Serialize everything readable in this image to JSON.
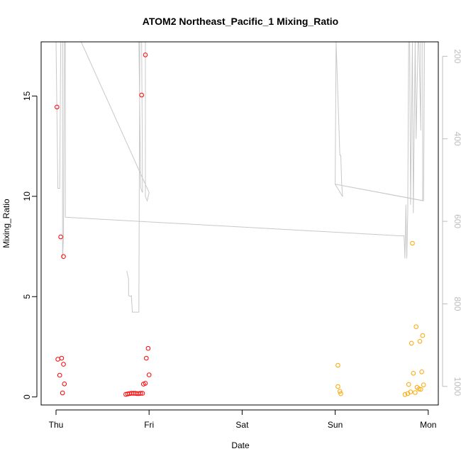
{
  "chart_data": {
    "type": "scatter",
    "title": "ATOM2 Northeast_Pacific_1 Mixing_Ratio",
    "xlabel": "Date",
    "ylabel": "Mixing_Ratio",
    "xlim": [
      0,
      4.1
    ],
    "ylim": [
      -0.4,
      17.7
    ],
    "x_tick_positions": [
      0,
      1,
      2,
      3,
      4
    ],
    "x_tick_labels": [
      "Thu",
      "Fri",
      "Sat",
      "Sun",
      "Mon"
    ],
    "y_ticks": [
      0,
      5,
      10,
      15
    ],
    "right_axis": {
      "ticks": [
        200,
        400,
        600,
        800,
        1000
      ],
      "lim": [
        1045,
        165
      ],
      "color": "#bdbdbd"
    },
    "series": [
      {
        "color": "#ff0000",
        "points": [
          [
            0.01,
            14.45
          ],
          [
            0.05,
            7.98
          ],
          [
            0.08,
            7.0
          ],
          [
            0.02,
            1.88
          ],
          [
            0.06,
            1.93
          ],
          [
            0.08,
            1.63
          ],
          [
            0.04,
            1.08
          ],
          [
            0.09,
            0.65
          ],
          [
            0.07,
            0.2
          ],
          [
            0.75,
            0.13
          ],
          [
            0.77,
            0.15
          ],
          [
            0.79,
            0.17
          ],
          [
            0.81,
            0.18
          ],
          [
            0.83,
            0.18
          ],
          [
            0.85,
            0.18
          ],
          [
            0.87,
            0.17
          ],
          [
            0.89,
            0.17
          ],
          [
            0.91,
            0.18
          ],
          [
            0.93,
            0.18
          ],
          [
            0.94,
            0.64
          ],
          [
            0.96,
            0.68
          ],
          [
            0.97,
            1.93
          ],
          [
            0.99,
            2.42
          ],
          [
            1.0,
            1.1
          ],
          [
            0.92,
            15.05
          ],
          [
            0.96,
            17.05
          ]
        ]
      },
      {
        "color": "#ffa500",
        "points": [
          [
            3.03,
            1.58
          ],
          [
            3.03,
            0.52
          ],
          [
            3.05,
            0.28
          ],
          [
            3.06,
            0.16
          ],
          [
            3.75,
            0.12
          ],
          [
            3.78,
            0.17
          ],
          [
            3.79,
            0.62
          ],
          [
            3.81,
            0.25
          ],
          [
            3.82,
            2.68
          ],
          [
            3.83,
            7.66
          ],
          [
            3.84,
            1.18
          ],
          [
            3.86,
            0.22
          ],
          [
            3.87,
            3.5
          ],
          [
            3.88,
            0.48
          ],
          [
            3.9,
            0.4
          ],
          [
            3.91,
            2.77
          ],
          [
            3.92,
            0.38
          ],
          [
            3.93,
            1.25
          ],
          [
            3.94,
            3.06
          ],
          [
            3.95,
            0.6
          ]
        ]
      }
    ],
    "pressure_line": {
      "color": "#c8c8c8",
      "points": [
        [
          0.0,
          165
        ],
        [
          0.02,
          520
        ],
        [
          0.03,
          520
        ],
        [
          0.04,
          520
        ],
        [
          0.05,
          165
        ],
        [
          0.07,
          165
        ],
        [
          0.07,
          690
        ],
        [
          0.08,
          640
        ],
        [
          0.09,
          165
        ],
        [
          0.1,
          165
        ],
        [
          0.1,
          590
        ],
        [
          3.7,
          635
        ],
        [
          3.74,
          635
        ],
        [
          3.75,
          690
        ],
        [
          3.76,
          560
        ],
        [
          3.77,
          690
        ],
        [
          3.78,
          580
        ],
        [
          3.79,
          165
        ],
        [
          3.8,
          165
        ],
        [
          3.81,
          560
        ],
        [
          3.83,
          165
        ],
        [
          3.84,
          580
        ],
        [
          3.86,
          165
        ],
        [
          3.87,
          400
        ],
        [
          3.89,
          165
        ],
        [
          3.9,
          165
        ],
        [
          3.92,
          380
        ],
        [
          3.92,
          165
        ],
        [
          3.94,
          165
        ],
        [
          3.94,
          550
        ],
        [
          3.0,
          510
        ],
        [
          3.01,
          165
        ],
        [
          3.05,
          440
        ],
        [
          3.06,
          440
        ],
        [
          3.07,
          510
        ],
        [
          3.08,
          540
        ],
        [
          3.0,
          510
        ],
        [
          3.95,
          550
        ],
        [
          3.96,
          165
        ],
        [
          0.27,
          165
        ],
        [
          1.0,
          530
        ],
        [
          0.98,
          550
        ],
        [
          0.96,
          540
        ],
        [
          0.96,
          165
        ],
        [
          0.92,
          165
        ],
        [
          0.93,
          530
        ],
        [
          0.91,
          520
        ],
        [
          0.89,
          165
        ],
        [
          0.9,
          165
        ],
        [
          0.89,
          820
        ],
        [
          0.82,
          820
        ],
        [
          0.81,
          780
        ],
        [
          0.8,
          782
        ],
        [
          0.78,
          780
        ],
        [
          0.78,
          740
        ],
        [
          0.76,
          720
        ]
      ]
    }
  }
}
